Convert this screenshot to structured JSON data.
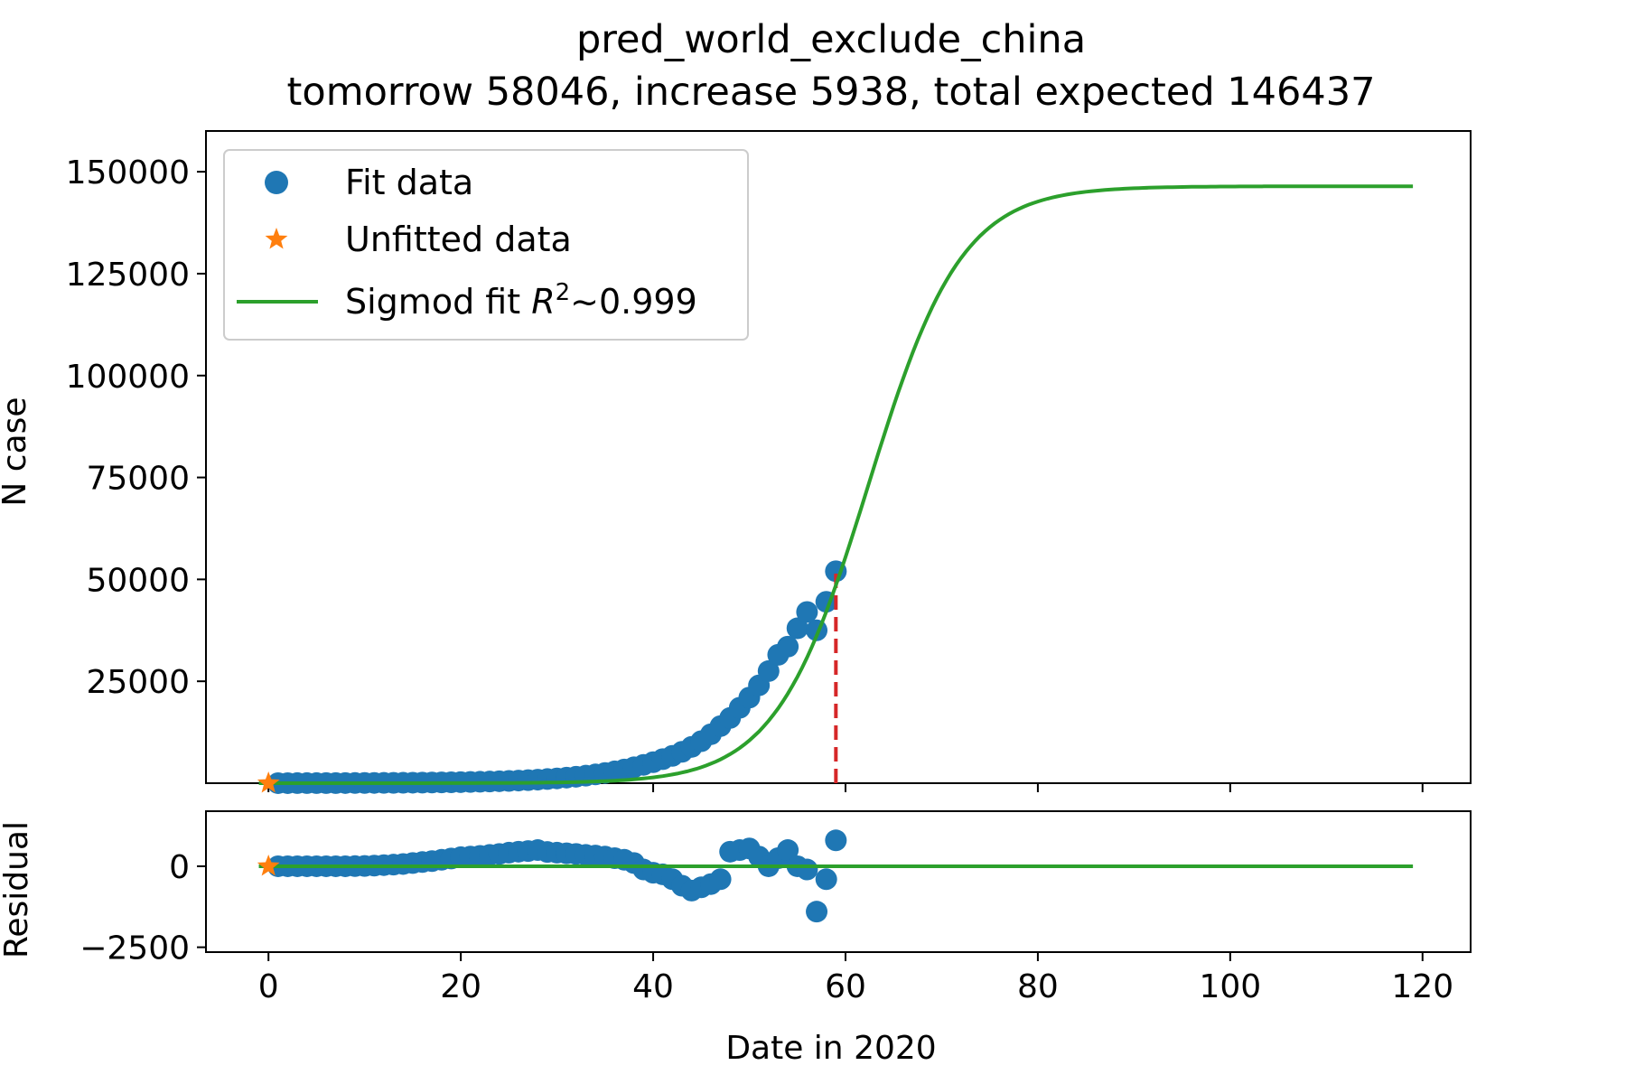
{
  "chart_data": [
    {
      "panel": "main",
      "type": "scatter",
      "title": "pred_world_exclude_china",
      "subtitle": "tomorrow 58046, increase 5938, total expected 146437",
      "xlabel": "",
      "ylabel": "N case",
      "xlim": [
        -6.5,
        125
      ],
      "ylim": [
        0,
        160000
      ],
      "yticks": [
        25000,
        50000,
        75000,
        100000,
        125000,
        150000
      ],
      "xticks": [
        0,
        20,
        40,
        60,
        80,
        100,
        120
      ],
      "grid": false,
      "legend_position": "top-left",
      "legend": {
        "fit_data": "Fit data",
        "unfitted_data": "Unfitted data",
        "sigmoid_fit_prefix": "Sigmod fit ",
        "r_symbol": "R",
        "r_exponent": "2",
        "sigmoid_fit_suffix": "~0.999"
      },
      "colors": {
        "fit": "#1f77b4",
        "unfitted": "#ff7f0e",
        "sigmoid": "#2ca02c",
        "marker_line": "#d62728"
      },
      "series": [
        {
          "name": "Fit data",
          "kind": "points",
          "x": [
            1,
            2,
            3,
            4,
            5,
            6,
            7,
            8,
            9,
            10,
            11,
            12,
            13,
            14,
            15,
            16,
            17,
            18,
            19,
            20,
            21,
            22,
            23,
            24,
            25,
            26,
            27,
            28,
            29,
            30,
            31,
            32,
            33,
            34,
            35,
            36,
            37,
            38,
            39,
            40,
            41,
            42,
            43,
            44,
            45,
            46,
            47,
            48,
            49,
            50,
            51,
            52,
            53,
            54,
            55,
            56,
            57,
            58,
            59
          ],
          "y": [
            10,
            12,
            15,
            18,
            22,
            26,
            31,
            37,
            44,
            52,
            62,
            73,
            86,
            101,
            118,
            139,
            163,
            190,
            222,
            259,
            302,
            352,
            410,
            477,
            555,
            645,
            750,
            872,
            1013,
            1177,
            1368,
            1590,
            1850,
            2150,
            2500,
            2900,
            3360,
            3900,
            4500,
            5150,
            5900,
            6700,
            7700,
            8900,
            10300,
            12000,
            14000,
            16000,
            18500,
            21000,
            24000,
            27500,
            31500,
            33500,
            38000,
            42000,
            37500,
            44500,
            52000
          ]
        },
        {
          "name": "Unfitted data",
          "kind": "points",
          "x": [
            0
          ],
          "y": [
            0
          ]
        },
        {
          "name": "Sigmod fit",
          "kind": "logistic-curve",
          "K": 146437,
          "x0": 62.39,
          "k": 0.2068,
          "x_range": [
            -1,
            119
          ]
        },
        {
          "name": "",
          "kind": "dashed-vertical",
          "x": 59,
          "y_from": 0,
          "y_to": 52108
        }
      ]
    },
    {
      "panel": "residual",
      "type": "scatter",
      "xlabel": "Date in 2020",
      "ylabel": "Residual",
      "xlim": [
        -6.5,
        125
      ],
      "ylim": [
        -2650,
        1700
      ],
      "yticks": [
        -2500,
        0
      ],
      "ytick_labels": [
        "−2500",
        "0"
      ],
      "xticks": [
        0,
        20,
        40,
        60,
        80,
        100,
        120
      ],
      "series": [
        {
          "name": "Fit data",
          "kind": "points",
          "x": [
            1,
            2,
            3,
            4,
            5,
            6,
            7,
            8,
            9,
            10,
            11,
            12,
            13,
            14,
            15,
            16,
            17,
            18,
            19,
            20,
            21,
            22,
            23,
            24,
            25,
            26,
            27,
            28,
            29,
            30,
            31,
            32,
            33,
            34,
            35,
            36,
            37,
            38,
            39,
            40,
            41,
            42,
            43,
            44,
            45,
            46,
            47,
            48,
            49,
            50,
            51,
            52,
            53,
            54,
            55,
            56,
            57,
            58,
            59
          ],
          "y": [
            0,
            0,
            0,
            0,
            0,
            0,
            0,
            0,
            5,
            10,
            20,
            35,
            50,
            70,
            100,
            130,
            160,
            200,
            240,
            280,
            300,
            320,
            350,
            380,
            420,
            450,
            470,
            500,
            440,
            420,
            400,
            380,
            350,
            330,
            300,
            250,
            200,
            100,
            -100,
            -200,
            -250,
            -400,
            -600,
            -750,
            -650,
            -550,
            -400,
            450,
            500,
            550,
            300,
            0,
            250,
            500,
            0,
            -100,
            -1400,
            -400,
            800
          ]
        },
        {
          "name": "Unfitted data",
          "kind": "points",
          "x": [
            0
          ],
          "y": [
            0
          ]
        },
        {
          "name": "",
          "kind": "hline",
          "y": 0,
          "x_range": [
            -1,
            119
          ]
        }
      ]
    }
  ]
}
